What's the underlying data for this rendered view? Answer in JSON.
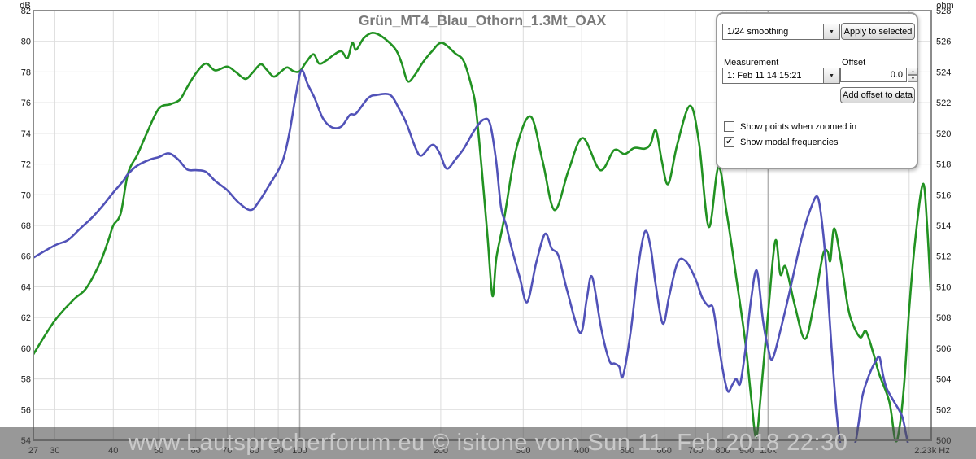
{
  "title": "Grün_MT4_Blau_Othorn_1.3Mt_OAX",
  "watermark": "www.Lautsprecherforum.eu © isitone  vom Sun 11. Feb 2018  22:30",
  "panel": {
    "smoothing_value": "1/24 smoothing",
    "apply_button": "Apply to selected",
    "measurement_label": "Measurement",
    "offset_label": "Offset",
    "measurement_value": "1: Feb 11 14:15:21",
    "offset_value": "0.0",
    "add_offset_button": "Add offset to data",
    "show_points_label": "Show points when zoomed in",
    "show_points_checked": false,
    "show_modal_label": "Show modal frequencies",
    "show_modal_checked": true,
    "dropdown_arrow": "▼",
    "spin_up": "▲",
    "spin_down": "▼",
    "check_glyph": "✔"
  },
  "axes": {
    "left": {
      "unit": "dB",
      "labels": [
        82,
        80,
        78,
        76,
        74,
        72,
        70,
        68,
        66,
        64,
        62,
        60,
        58,
        56,
        54
      ]
    },
    "right": {
      "unit": "ohm",
      "labels": [
        528,
        526,
        524,
        522,
        520,
        518,
        516,
        514,
        512,
        510,
        508,
        506,
        504,
        502,
        500
      ]
    },
    "bottom": {
      "ticks": [
        {
          "f": 27,
          "label": "27"
        },
        {
          "f": 30,
          "label": "30"
        },
        {
          "f": 40,
          "label": "40"
        },
        {
          "f": 50,
          "label": "50"
        },
        {
          "f": 60,
          "label": "60"
        },
        {
          "f": 70,
          "label": "70"
        },
        {
          "f": 80,
          "label": "80"
        },
        {
          "f": 90,
          "label": "90"
        },
        {
          "f": 100,
          "label": "100"
        },
        {
          "f": 200,
          "label": "200"
        },
        {
          "f": 300,
          "label": "300"
        },
        {
          "f": 400,
          "label": "400"
        },
        {
          "f": 500,
          "label": "500"
        },
        {
          "f": 600,
          "label": "600"
        },
        {
          "f": 700,
          "label": "700"
        },
        {
          "f": 800,
          "label": "800"
        },
        {
          "f": 900,
          "label": "900"
        },
        {
          "f": 1000,
          "label": "1.0k"
        }
      ],
      "end_label": "2.23k Hz",
      "gridlines": [
        30,
        40,
        50,
        60,
        70,
        80,
        90,
        100,
        200,
        300,
        400,
        500,
        600,
        700,
        800,
        900,
        1000,
        2000
      ],
      "decade_lines": [
        100,
        1000
      ]
    }
  },
  "chart_data": {
    "type": "line",
    "title": "Grün_MT4_Blau_Othorn_1.3Mt_OAX",
    "x_scale": "log",
    "x_range": [
      27,
      2230
    ],
    "y_left_range": [
      54,
      82
    ],
    "y_right_range": [
      500,
      528
    ],
    "grid": true,
    "legend_position": "none",
    "colors": {
      "grid_light": "#dcdcdc",
      "grid_decade": "#b2b2b2",
      "border": "#8c8c8c",
      "axis_text": "#1a1a1a",
      "title_text": "#7a7a7a"
    },
    "series": [
      {
        "name": "Grün MT4 (green)",
        "color": "#229222",
        "points": [
          [
            27,
            59.6
          ],
          [
            30,
            61.8
          ],
          [
            33,
            63.2
          ],
          [
            35,
            63.9
          ],
          [
            37.5,
            65.6
          ],
          [
            39,
            67.0
          ],
          [
            40,
            68.0
          ],
          [
            41.5,
            68.8
          ],
          [
            43,
            71.4
          ],
          [
            45,
            72.6
          ],
          [
            47,
            73.9
          ],
          [
            50,
            75.6
          ],
          [
            53,
            75.9
          ],
          [
            55.5,
            76.2
          ],
          [
            57.5,
            77.0
          ],
          [
            60,
            77.9
          ],
          [
            63,
            78.55
          ],
          [
            66,
            78.1
          ],
          [
            70,
            78.35
          ],
          [
            73,
            78.0
          ],
          [
            76.5,
            77.55
          ],
          [
            79,
            77.9
          ],
          [
            82.5,
            78.5
          ],
          [
            85,
            78.15
          ],
          [
            88,
            77.7
          ],
          [
            91,
            78.0
          ],
          [
            94,
            78.3
          ],
          [
            97,
            78.05
          ],
          [
            100,
            78.05
          ],
          [
            103,
            78.6
          ],
          [
            107,
            79.15
          ],
          [
            110,
            78.55
          ],
          [
            114,
            78.75
          ],
          [
            118,
            79.1
          ],
          [
            122.7,
            79.35
          ],
          [
            126.5,
            78.9
          ],
          [
            129.5,
            79.9
          ],
          [
            132,
            79.45
          ],
          [
            137,
            80.2
          ],
          [
            143,
            80.55
          ],
          [
            150,
            80.3
          ],
          [
            160,
            79.5
          ],
          [
            165,
            78.6
          ],
          [
            170,
            77.4
          ],
          [
            176,
            77.8
          ],
          [
            183,
            78.6
          ],
          [
            191,
            79.3
          ],
          [
            201,
            79.9
          ],
          [
            215,
            79.2
          ],
          [
            224,
            78.7
          ],
          [
            233,
            77.0
          ],
          [
            238,
            75.5
          ],
          [
            245,
            71.5
          ],
          [
            252,
            67.1
          ],
          [
            258,
            63.4
          ],
          [
            263,
            65.9
          ],
          [
            273,
            68.4
          ],
          [
            290,
            73.0
          ],
          [
            311,
            75.1
          ],
          [
            330,
            72.2
          ],
          [
            350,
            69.0
          ],
          [
            375,
            71.6
          ],
          [
            402,
            73.7
          ],
          [
            438,
            71.6
          ],
          [
            469,
            72.9
          ],
          [
            494,
            72.65
          ],
          [
            518,
            73.05
          ],
          [
            545,
            73.0
          ],
          [
            561,
            73.3
          ],
          [
            576,
            74.2
          ],
          [
            593,
            72.2
          ],
          [
            612,
            70.7
          ],
          [
            640,
            73.3
          ],
          [
            681,
            75.8
          ],
          [
            712,
            73.4
          ],
          [
            747,
            67.9
          ],
          [
            783,
            71.8
          ],
          [
            815,
            68.9
          ],
          [
            857,
            64.4
          ],
          [
            894,
            60.4
          ],
          [
            920,
            56.8
          ],
          [
            943,
            54.2
          ],
          [
            965,
            57.0
          ],
          [
            1000,
            62.3
          ],
          [
            1036,
            67.0
          ],
          [
            1062,
            64.8
          ],
          [
            1090,
            65.3
          ],
          [
            1140,
            62.8
          ],
          [
            1199,
            60.6
          ],
          [
            1255,
            63.0
          ],
          [
            1310,
            66.1
          ],
          [
            1340,
            66.3
          ],
          [
            1358,
            65.7
          ],
          [
            1385,
            67.8
          ],
          [
            1437,
            65.3
          ],
          [
            1480,
            62.7
          ],
          [
            1520,
            61.5
          ],
          [
            1575,
            60.7
          ],
          [
            1618,
            61.1
          ],
          [
            1680,
            59.6
          ],
          [
            1727,
            58.3
          ],
          [
            1815,
            56.5
          ],
          [
            1865,
            54.1
          ],
          [
            1900,
            54.5
          ],
          [
            1950,
            57.5
          ],
          [
            2000,
            62.5
          ],
          [
            2060,
            67.0
          ],
          [
            2140,
            70.7
          ],
          [
            2185,
            68.0
          ],
          [
            2230,
            62.9
          ]
        ]
      },
      {
        "name": "Blau Othorn 1.3Mt OAX (blue)",
        "color": "#5152b8",
        "points": [
          [
            27,
            65.9
          ],
          [
            30,
            66.7
          ],
          [
            32,
            67.05
          ],
          [
            34,
            67.8
          ],
          [
            36,
            68.5
          ],
          [
            38,
            69.3
          ],
          [
            40,
            70.15
          ],
          [
            42,
            70.9
          ],
          [
            43,
            71.35
          ],
          [
            45,
            71.9
          ],
          [
            48,
            72.3
          ],
          [
            50,
            72.45
          ],
          [
            52.5,
            72.7
          ],
          [
            55,
            72.3
          ],
          [
            57.5,
            71.65
          ],
          [
            60,
            71.6
          ],
          [
            63,
            71.5
          ],
          [
            66,
            70.9
          ],
          [
            70,
            70.3
          ],
          [
            74,
            69.5
          ],
          [
            78.6,
            69.0
          ],
          [
            82,
            69.6
          ],
          [
            86,
            70.6
          ],
          [
            91.7,
            72.1
          ],
          [
            95,
            74.0
          ],
          [
            98,
            76.4
          ],
          [
            100.8,
            78.1
          ],
          [
            104,
            77.2
          ],
          [
            107.6,
            76.3
          ],
          [
            112,
            75.0
          ],
          [
            117,
            74.4
          ],
          [
            122.7,
            74.45
          ],
          [
            128,
            75.2
          ],
          [
            132,
            75.3
          ],
          [
            140,
            76.3
          ],
          [
            146,
            76.5
          ],
          [
            156,
            76.5
          ],
          [
            163,
            75.6
          ],
          [
            169,
            74.65
          ],
          [
            177,
            73.0
          ],
          [
            182,
            72.55
          ],
          [
            192,
            73.25
          ],
          [
            199,
            72.7
          ],
          [
            206,
            71.7
          ],
          [
            215,
            72.3
          ],
          [
            224,
            73.0
          ],
          [
            236,
            74.2
          ],
          [
            247,
            74.9
          ],
          [
            255,
            74.6
          ],
          [
            262.6,
            72.2
          ],
          [
            269,
            69.2
          ],
          [
            276,
            68.0
          ],
          [
            283,
            66.6
          ],
          [
            295,
            64.6
          ],
          [
            306,
            63.0
          ],
          [
            320,
            65.6
          ],
          [
            334,
            67.45
          ],
          [
            345,
            66.5
          ],
          [
            357,
            66.0
          ],
          [
            372,
            63.8
          ],
          [
            397,
            61.0
          ],
          [
            410,
            63.2
          ],
          [
            421,
            64.65
          ],
          [
            440,
            61.3
          ],
          [
            458,
            59.2
          ],
          [
            470,
            59.0
          ],
          [
            481,
            58.8
          ],
          [
            490,
            58.2
          ],
          [
            510,
            61.3
          ],
          [
            528,
            65.3
          ],
          [
            546,
            67.6
          ],
          [
            561,
            66.6
          ],
          [
            575,
            64.2
          ],
          [
            596,
            61.6
          ],
          [
            615,
            63.4
          ],
          [
            641,
            65.6
          ],
          [
            668,
            65.65
          ],
          [
            700,
            64.5
          ],
          [
            723,
            63.3
          ],
          [
            745,
            62.75
          ],
          [
            763,
            62.6
          ],
          [
            783,
            60.4
          ],
          [
            800,
            58.6
          ],
          [
            820,
            57.2
          ],
          [
            838,
            57.6
          ],
          [
            854,
            58.0
          ],
          [
            872,
            57.7
          ],
          [
            895,
            60.0
          ],
          [
            919,
            63.1
          ],
          [
            946,
            65.05
          ],
          [
            975,
            61.8
          ],
          [
            1000,
            60.0
          ],
          [
            1022,
            59.3
          ],
          [
            1065,
            61.3
          ],
          [
            1110,
            63.6
          ],
          [
            1180,
            67.2
          ],
          [
            1240,
            69.3
          ],
          [
            1278,
            69.8
          ],
          [
            1310,
            67.6
          ],
          [
            1335,
            64.6
          ],
          [
            1365,
            60.2
          ],
          [
            1400,
            55.8
          ],
          [
            1430,
            53.6
          ],
          [
            1470,
            53.0
          ],
          [
            1530,
            53.7
          ],
          [
            1560,
            55.1
          ],
          [
            1590,
            56.9
          ],
          [
            1645,
            58.3
          ],
          [
            1700,
            59.2
          ],
          [
            1730,
            59.4
          ],
          [
            1758,
            58.3
          ],
          [
            1790,
            57.4
          ],
          [
            1850,
            56.6
          ],
          [
            1930,
            55.6
          ],
          [
            1970,
            54.4
          ],
          [
            2000,
            53.4
          ]
        ]
      }
    ]
  }
}
